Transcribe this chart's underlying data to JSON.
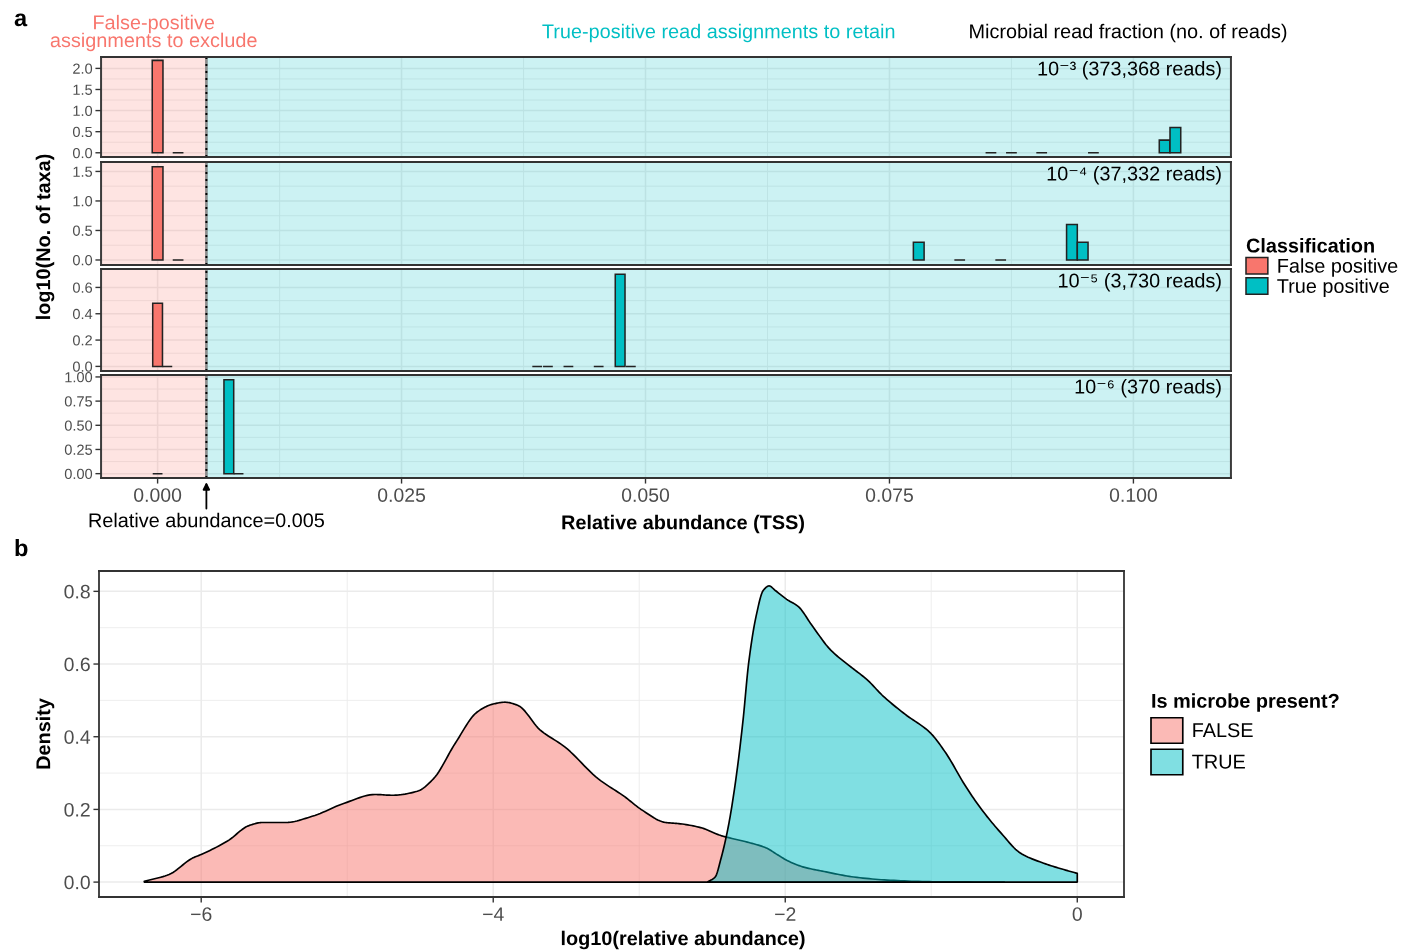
{
  "chart_data": [
    {
      "type": "bar",
      "title": "10⁻³ (373,368 reads)",
      "annotations": [
        "a",
        "Microbial read fraction (no. of reads)"
      ],
      "x": [
        0,
        0.0021,
        0.0854,
        0.0875,
        0.0906,
        0.0959,
        0.1032,
        0.1043
      ],
      "series": [
        {
          "color": "#F8766D",
          "values": [
            2.19,
            null,
            null,
            null,
            null,
            null,
            null,
            null
          ]
        },
        {
          "color": "#00BFC4",
          "values": [
            null,
            null,
            null,
            null,
            null,
            null,
            0.3,
            0.6
          ]
        },
        {
          "color": "#222222",
          "values": [
            null,
            0,
            0,
            0,
            0,
            0,
            null,
            null
          ]
        }
      ],
      "bands": [
        {
          "axis": "x",
          "from": -0.0058,
          "to": 0.005,
          "color": "#F8766D",
          "label": "False-positive\nassignments to exclude"
        },
        {
          "axis": "x",
          "from": 0.005,
          "to": 0.11,
          "color": "#00BFC4",
          "label": "True-positive read assignments to retain"
        }
      ],
      "ref_lines": [
        {
          "axis": "x",
          "value": 0.005,
          "color": "#000000",
          "line_style": "dotted"
        }
      ],
      "xlim": [
        -0.0058,
        0.11
      ],
      "xticks": [
        0,
        0.025,
        0.05,
        0.075,
        0.1
      ],
      "ylim": [
        -0.1,
        2.27
      ],
      "yticks": [
        {
          "value": 0,
          "label": "0.0"
        },
        0.5,
        {
          "value": 1,
          "label": "1.0"
        },
        1.5,
        {
          "value": 2,
          "label": "2.0"
        }
      ],
      "tick_labels": "y",
      "grid": true
    },
    {
      "type": "bar",
      "title": "10⁻⁴ (37,332 reads)",
      "ylabel": "log10(No. of taxa)",
      "legend": "right",
      "legend_title": "Classification",
      "x": [
        0,
        0.0021,
        0.078,
        0.0822,
        0.0864,
        0.0937,
        0.0948
      ],
      "series": [
        {
          "name": "False positive",
          "color": "#F8766D",
          "values": [
            1.58,
            null,
            null,
            null,
            null,
            null,
            null
          ]
        },
        {
          "name": "True positive",
          "color": "#00BFC4",
          "values": [
            null,
            null,
            0.3,
            null,
            null,
            0.6,
            0.3
          ]
        },
        {
          "color": "#222222",
          "values": [
            null,
            0,
            null,
            0,
            0,
            null,
            null
          ]
        }
      ],
      "bands": [
        {
          "axis": "x",
          "from": -0.0058,
          "to": 0.005,
          "color": "#F8766D"
        },
        {
          "axis": "x",
          "from": 0.005,
          "to": 0.11,
          "color": "#00BFC4"
        }
      ],
      "ref_lines": [
        {
          "axis": "x",
          "value": 0.005,
          "color": "#000000",
          "line_style": "dotted"
        }
      ],
      "xlim": [
        -0.0058,
        0.11
      ],
      "xticks": [
        0,
        0.025,
        0.05,
        0.075,
        0.1
      ],
      "ylim": [
        -0.085,
        1.66
      ],
      "yticks": [
        {
          "value": 0,
          "label": "0.0"
        },
        0.5,
        {
          "value": 1,
          "label": "1.0"
        },
        1.5
      ],
      "tick_labels": "y",
      "grid": true
    },
    {
      "type": "bar",
      "title": "10⁻⁵ (3,730 reads)",
      "x": [
        0,
        0.001,
        0.0389,
        0.04,
        0.0421,
        0.0452,
        0.0474,
        0.0485
      ],
      "series": [
        {
          "color": "#F8766D",
          "values": [
            0.48,
            null,
            null,
            null,
            null,
            null,
            null,
            null
          ]
        },
        {
          "color": "#00BFC4",
          "values": [
            null,
            null,
            null,
            null,
            null,
            null,
            0.7,
            null
          ]
        },
        {
          "color": "#222222",
          "values": [
            null,
            0,
            0,
            0,
            0,
            0,
            null,
            0
          ]
        }
      ],
      "bands": [
        {
          "axis": "x",
          "from": -0.0058,
          "to": 0.005,
          "color": "#F8766D"
        },
        {
          "axis": "x",
          "from": 0.005,
          "to": 0.11,
          "color": "#00BFC4"
        }
      ],
      "ref_lines": [
        {
          "axis": "x",
          "value": 0.005,
          "color": "#000000",
          "line_style": "dotted"
        }
      ],
      "xlim": [
        -0.0058,
        0.11
      ],
      "xticks": [
        0,
        0.025,
        0.05,
        0.075,
        0.1
      ],
      "ylim": [
        -0.035,
        0.74
      ],
      "yticks": [
        {
          "value": 0,
          "label": "0.0"
        },
        0.2,
        0.4,
        0.6
      ],
      "tick_labels": "y",
      "grid": true
    },
    {
      "type": "bar",
      "title": "10⁻⁶ (370 reads)",
      "xlabel": "Relative abundance (TSS)",
      "x": [
        0,
        0.0073,
        0.0083
      ],
      "series": [
        {
          "color": "#00BFC4",
          "values": [
            null,
            0.97,
            null
          ]
        },
        {
          "color": "#222222",
          "values": [
            0,
            null,
            0
          ]
        }
      ],
      "bands": [
        {
          "axis": "x",
          "from": -0.0058,
          "to": 0.005,
          "color": "#F8766D"
        },
        {
          "axis": "x",
          "from": 0.005,
          "to": 0.11,
          "color": "#00BFC4"
        }
      ],
      "ref_lines": [
        {
          "axis": "x",
          "value": 0.005,
          "color": "#000000",
          "line_style": "dotted",
          "label": "Relative abundance=0.005"
        }
      ],
      "xlim": [
        -0.0058,
        0.11
      ],
      "xticks": [
        {
          "value": 0,
          "label": "0.000"
        },
        0.025,
        {
          "value": 0.05,
          "label": "0.050"
        },
        0.075,
        {
          "value": 0.1,
          "label": "0.100"
        }
      ],
      "ylim": [
        -0.045,
        1.02
      ],
      "yticks": [
        {
          "value": 0,
          "label": "0.00"
        },
        0.25,
        {
          "value": 0.5,
          "label": "0.50"
        },
        0.75,
        {
          "value": 1,
          "label": "1.00"
        }
      ],
      "grid": true
    },
    {
      "type": "area",
      "xlabel": "log10(relative abundance)",
      "ylabel": "Density",
      "legend": "right",
      "legend_title": "Is microbe present?",
      "annotations": [
        "b"
      ],
      "series": [
        {
          "name": "FALSE",
          "color": "#fbbab6",
          "x": [
            -6.39,
            -6.22,
            -6.06,
            -6.0,
            -5.82,
            -5.67,
            -5.58,
            -5.42,
            -5.24,
            -5.02,
            -4.81,
            -4.69,
            -4.52,
            -4.41,
            -4.26,
            -4.11,
            -4.0,
            -3.92,
            -3.83,
            -3.68,
            -3.51,
            -3.28,
            -3.1,
            -2.98,
            -2.82,
            -2.73,
            -2.58,
            -2.44,
            -2.26,
            -2.13,
            -2.06,
            -1.98,
            -1.88,
            -1.72,
            -1.53,
            -1.28,
            -0.99,
            -0.5
          ],
          "values": [
            0.002,
            0.021,
            0.066,
            0.076,
            0.113,
            0.156,
            0.164,
            0.164,
            0.181,
            0.217,
            0.241,
            0.239,
            0.25,
            0.284,
            0.382,
            0.468,
            0.49,
            0.495,
            0.486,
            0.419,
            0.372,
            0.284,
            0.235,
            0.198,
            0.164,
            0.161,
            0.15,
            0.128,
            0.11,
            0.094,
            0.077,
            0.058,
            0.042,
            0.028,
            0.014,
            0.005,
            0.001,
            0
          ]
        },
        {
          "name": "TRUE",
          "color": "#80dfe2",
          "x": [
            -2.53,
            -2.48,
            -2.44,
            -2.39,
            -2.34,
            -2.29,
            -2.25,
            -2.2,
            -2.15,
            -2.11,
            -2.07,
            -1.99,
            -1.91,
            -1.82,
            -1.69,
            -1.56,
            -1.44,
            -1.33,
            -1.18,
            -1.01,
            -0.9,
            -0.77,
            -0.65,
            -0.52,
            -0.39,
            -0.23,
            -0.08,
            0
          ],
          "values": [
            0.001,
            0.014,
            0.065,
            0.153,
            0.278,
            0.442,
            0.605,
            0.731,
            0.803,
            0.815,
            0.803,
            0.778,
            0.758,
            0.708,
            0.639,
            0.595,
            0.557,
            0.512,
            0.462,
            0.412,
            0.355,
            0.267,
            0.197,
            0.134,
            0.08,
            0.052,
            0.033,
            0.024
          ]
        }
      ],
      "xlim": [
        -6.7,
        0.32
      ],
      "xticks": [
        {
          "value": -6,
          "label": "−6"
        },
        {
          "value": -4,
          "label": "−4"
        },
        {
          "value": -2,
          "label": "−2"
        },
        0
      ],
      "ylim": [
        -0.041,
        0.856
      ],
      "yticks": [
        {
          "value": 0,
          "label": "0.0"
        },
        0.2,
        0.4,
        0.6,
        0.8
      ],
      "grid": true
    }
  ]
}
